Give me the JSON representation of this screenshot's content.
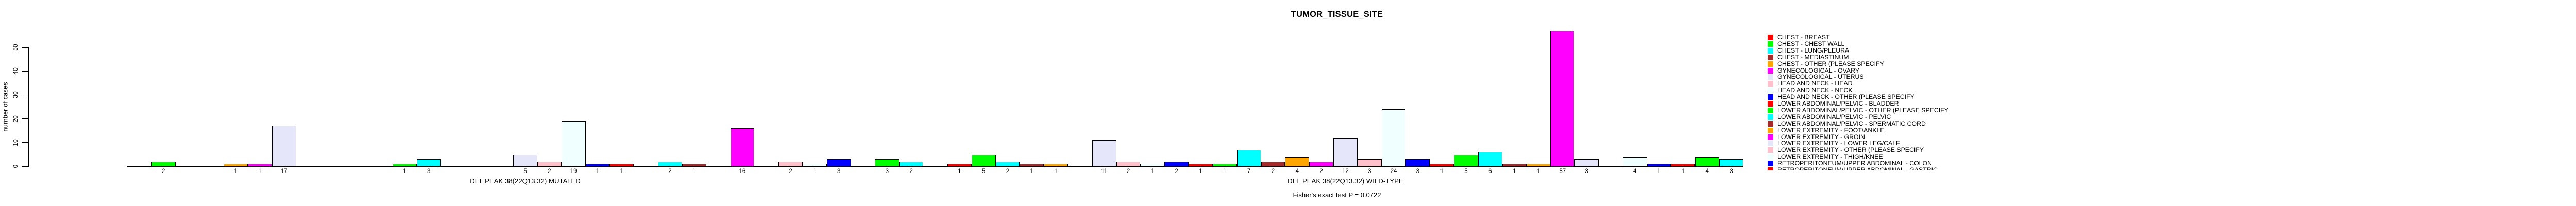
{
  "chart_data": {
    "type": "bar",
    "title": "TUMOR_TISSUE_SITE",
    "ylabel": "number of cases",
    "annotation": "Fisher's exact test P = 0.0722",
    "yticks": [
      0,
      10,
      20,
      30,
      40,
      50
    ],
    "ylim": [
      0,
      50
    ],
    "grid": false,
    "legend_position": "right",
    "n_categories_per_group": 33,
    "bar_value_labels_shown": true,
    "palette_cycle": [
      "#FF0000",
      "#00FF00",
      "#00FFFF",
      "#A52A2A",
      "#FFA500",
      "#FF00FF",
      "#E6E6FA",
      "#FFC0CB",
      "#F0FFFF",
      "#0000FF"
    ],
    "legend_visible_entries": [
      "CHEST - BREAST",
      "CHEST - CHEST WALL",
      "CHEST - LUNG/PLEURA",
      "CHEST - MEDIASTINUM",
      "CHEST - OTHER (PLEASE SPECIFY",
      "GYNECOLOGICAL - OVARY",
      "GYNECOLOGICAL - UTERUS",
      "HEAD AND NECK - HEAD",
      "HEAD AND NECK - NECK",
      "HEAD AND NECK - OTHER (PLEASE SPECIFY",
      "LOWER ABDOMINAL/PELVIC - BLADDER",
      "LOWER ABDOMINAL/PELVIC - OTHER (PLEASE SPECIFY",
      "LOWER ABDOMINAL/PELVIC - PELVIC",
      "LOWER ABDOMINAL/PELVIC - SPERMATIC CORD",
      "LOWER EXTREMITY - FOOT/ANKLE",
      "LOWER EXTREMITY - GROIN",
      "LOWER EXTREMITY - LOWER LEG/CALF",
      "LOWER EXTREMITY - OTHER (PLEASE SPECIFY",
      "LOWER EXTREMITY - THIGH/KNEE",
      "RETROPERITONEUM/UPPER ABDOMINAL - COLON",
      "RETROPERITONEUM/UPPER ABDOMINAL - GASTRIC"
    ],
    "legend_last_entry_clipped": true,
    "series": [
      {
        "name": "DEL PEAK 38(22Q13.32) MUTATED",
        "values": [
          0,
          2,
          0,
          0,
          1,
          1,
          17,
          0,
          0,
          0,
          0,
          1,
          3,
          0,
          0,
          0,
          5,
          2,
          19,
          1,
          1,
          0,
          2,
          1,
          0,
          16,
          0,
          2,
          1,
          3,
          0,
          3,
          2
        ]
      },
      {
        "name": "DEL PEAK 38(22Q13.32) WILD-TYPE",
        "values": [
          1,
          5,
          2,
          1,
          1,
          0,
          11,
          2,
          1,
          2,
          1,
          1,
          7,
          2,
          4,
          2,
          12,
          3,
          24,
          3,
          1,
          5,
          6,
          1,
          1,
          57,
          3,
          0,
          4,
          1,
          1,
          4,
          3
        ]
      }
    ]
  },
  "layout_colors": {
    "background": "#FFFFFF",
    "axis": "#000000",
    "bar_border": "#000000"
  }
}
